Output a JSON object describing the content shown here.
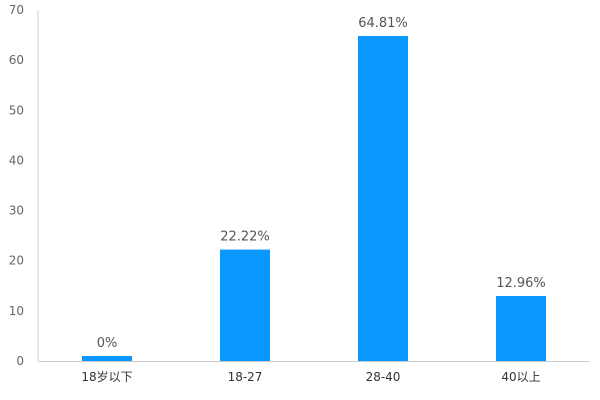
{
  "chart_data": {
    "type": "bar",
    "categories": [
      "18岁以下",
      "18-27",
      "28-40",
      "40以上"
    ],
    "values": [
      0,
      22.22,
      64.81,
      12.96
    ],
    "data_labels": [
      "0%",
      "22.22%",
      "64.81%",
      "12.96%"
    ],
    "ylim": [
      0,
      70
    ],
    "yticks": [
      "0",
      "10",
      "20",
      "30",
      "40",
      "50",
      "60",
      "70"
    ],
    "grid": false,
    "bar_color": "#0A97FF",
    "axis_color": "#CCCCCC"
  }
}
